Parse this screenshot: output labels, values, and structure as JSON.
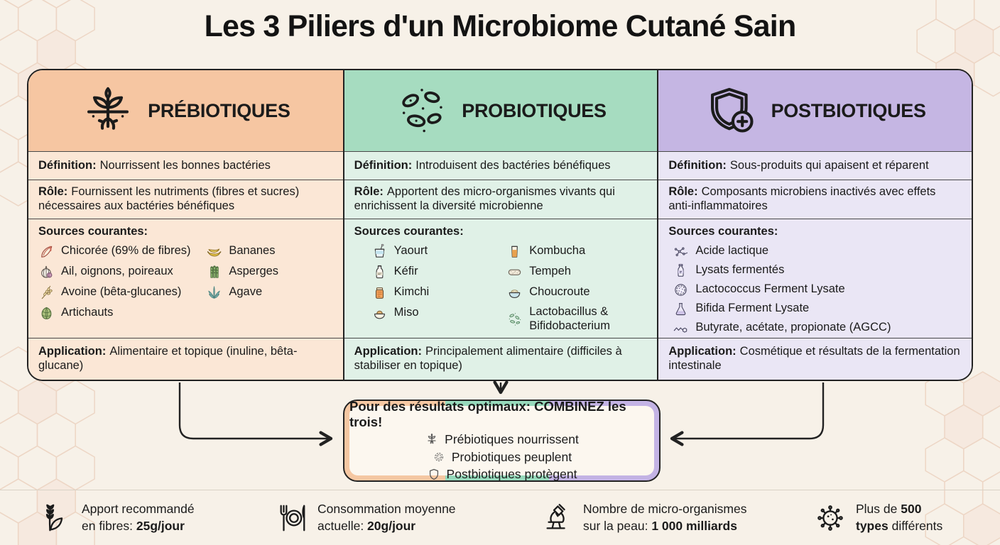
{
  "title": "Les 3 Piliers d'un Microbiome Cutané Sain",
  "colors": {
    "prebiotic_header": "#F6C6A2",
    "prebiotic_light": "#FBE7D6",
    "probiotic_header": "#A6DCC0",
    "probiotic_light": "#E0F1E7",
    "postbiotic_header": "#C5B6E3",
    "postbiotic_light": "#EAE6F5",
    "outline": "#222222",
    "background": "#F7F1E8"
  },
  "columns": [
    {
      "title": "PRÉBIOTIQUES",
      "icon": "sprout-roots-icon",
      "definition_label": "Définition:",
      "definition": "Nourrissent les bonnes bactéries",
      "role_label": "Rôle:",
      "role": "Fournissent les nutriments (fibres et sucres) nécessaires aux bactéries bénéfiques",
      "sources_label": "Sources courantes:",
      "sources_left": [
        {
          "icon": "chicory-icon",
          "label": "Chicorée (69% de fibres)"
        },
        {
          "icon": "garlic-icon",
          "label": "Ail, oignons, poireaux"
        },
        {
          "icon": "oat-icon",
          "label": "Avoine (bêta-glucanes)"
        },
        {
          "icon": "artichoke-icon",
          "label": "Artichauts"
        }
      ],
      "sources_right": [
        {
          "icon": "banana-icon",
          "label": "Bananes"
        },
        {
          "icon": "asparagus-icon",
          "label": "Asperges"
        },
        {
          "icon": "agave-icon",
          "label": "Agave"
        }
      ],
      "application_label": "Application:",
      "application": "Alimentaire et topique (inuline, bêta-glucane)"
    },
    {
      "title": "PROBIOTIQUES",
      "icon": "bacteria-cluster-icon",
      "definition_label": "Définition:",
      "definition": "Introduisent des bactéries bénéfiques",
      "role_label": "Rôle:",
      "role": "Apportent des micro-organismes vivants qui enrichissent la diversité microbienne",
      "sources_label": "Sources courantes:",
      "sources_left": [
        {
          "icon": "yogurt-icon",
          "label": "Yaourt"
        },
        {
          "icon": "kefir-icon",
          "label": "Kéfir"
        },
        {
          "icon": "kimchi-icon",
          "label": "Kimchi"
        },
        {
          "icon": "miso-icon",
          "label": "Miso"
        }
      ],
      "sources_right": [
        {
          "icon": "kombucha-icon",
          "label": "Kombucha"
        },
        {
          "icon": "tempeh-icon",
          "label": "Tempeh"
        },
        {
          "icon": "sauerkraut-icon",
          "label": "Choucroute"
        },
        {
          "icon": "bacteria-icon",
          "label": "Lactobacillus & Bifidobacterium"
        }
      ],
      "application_label": "Application:",
      "application": "Principalement alimentaire (difficiles à stabiliser en topique)"
    },
    {
      "title": "POSTBIOTIQUES",
      "icon": "shield-plus-icon",
      "definition_label": "Définition:",
      "definition": "Sous-produits qui apaisent et réparent",
      "role_label": "Rôle:",
      "role": "Composants microbiens inactivés avec effets anti-inflammatoires",
      "sources_label": "Sources courantes:",
      "sources_left": [
        {
          "icon": "molecule-icon",
          "label": "Acide lactique"
        },
        {
          "icon": "bottle-icon",
          "label": "Lysats fermentés"
        },
        {
          "icon": "petri-dish-icon",
          "label": "Lactococcus Ferment Lysate"
        },
        {
          "icon": "flask-icon",
          "label": "Bifida Ferment Lysate"
        },
        {
          "icon": "fatty-acid-icon",
          "label": "Butyrate, acétate, propionate (AGCC)"
        }
      ],
      "sources_right": [],
      "application_label": "Application:",
      "application": "Cosmétique et résultats de la fermentation intestinale"
    }
  ],
  "combo": {
    "title": "Pour des résultats optimaux: COMBINEZ les trois!",
    "items": [
      {
        "icon": "sprout-icon",
        "label": "Prébiotiques nourrissent"
      },
      {
        "icon": "bacteria-round-icon",
        "label": "Probiotiques peuplent"
      },
      {
        "icon": "shield-icon",
        "label": "Postbiotiques protègent"
      }
    ]
  },
  "footer": {
    "stats": [
      {
        "icon": "wheat-icon",
        "line1": "Apport recommandé",
        "line2_pre": "en fibres: ",
        "line2_bold": "25g/jour"
      },
      {
        "icon": "plate-cutlery-icon",
        "line1": "Consommation moyenne",
        "line2_pre": "actuelle: ",
        "line2_bold": "20g/jour"
      },
      {
        "icon": "microscope-icon",
        "line1": "Nombre de micro-organismes",
        "line2_pre": "sur la peau: ",
        "line2_bold": "1 000 milliards"
      },
      {
        "icon": "microbe-icon",
        "line1_pre": "Plus de ",
        "line1_bold": "500",
        "line2_bold": "types",
        "line2_post": " différents"
      }
    ]
  }
}
